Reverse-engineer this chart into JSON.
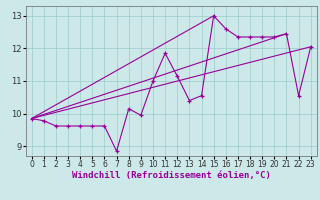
{
  "background_color": "#cce8e8",
  "line_color": "#990099",
  "xlim": [
    -0.5,
    23.5
  ],
  "ylim": [
    8.7,
    13.3
  ],
  "yticks": [
    9,
    10,
    11,
    12,
    13
  ],
  "xticks": [
    0,
    1,
    2,
    3,
    4,
    5,
    6,
    7,
    8,
    9,
    10,
    11,
    12,
    13,
    14,
    15,
    16,
    17,
    18,
    19,
    20,
    21,
    22,
    23
  ],
  "zigzag_x": [
    0,
    1,
    2,
    3,
    4,
    5,
    6,
    7,
    8,
    9,
    10,
    11,
    12,
    13,
    14,
    15,
    16,
    17,
    18,
    19,
    20,
    21,
    22,
    23
  ],
  "zigzag_y": [
    9.85,
    9.78,
    9.62,
    9.62,
    9.62,
    9.62,
    9.62,
    8.85,
    10.15,
    9.95,
    11.0,
    11.85,
    11.15,
    10.4,
    10.55,
    13.0,
    12.6,
    12.35,
    12.35,
    12.35,
    12.35,
    12.45,
    10.55,
    12.05
  ],
  "line1_x": [
    0,
    23
  ],
  "line1_y": [
    9.85,
    12.05
  ],
  "line2_x": [
    0,
    21
  ],
  "line2_y": [
    9.85,
    12.45
  ],
  "line3_x": [
    0,
    15
  ],
  "line3_y": [
    9.85,
    13.0
  ],
  "grid_color": "#99cccc",
  "tick_fontsize": 5.5,
  "xlabel": "Windchill (Refroidissement éolien,°C)",
  "xlabel_fontsize": 6.5,
  "xlabel_color": "#990099"
}
